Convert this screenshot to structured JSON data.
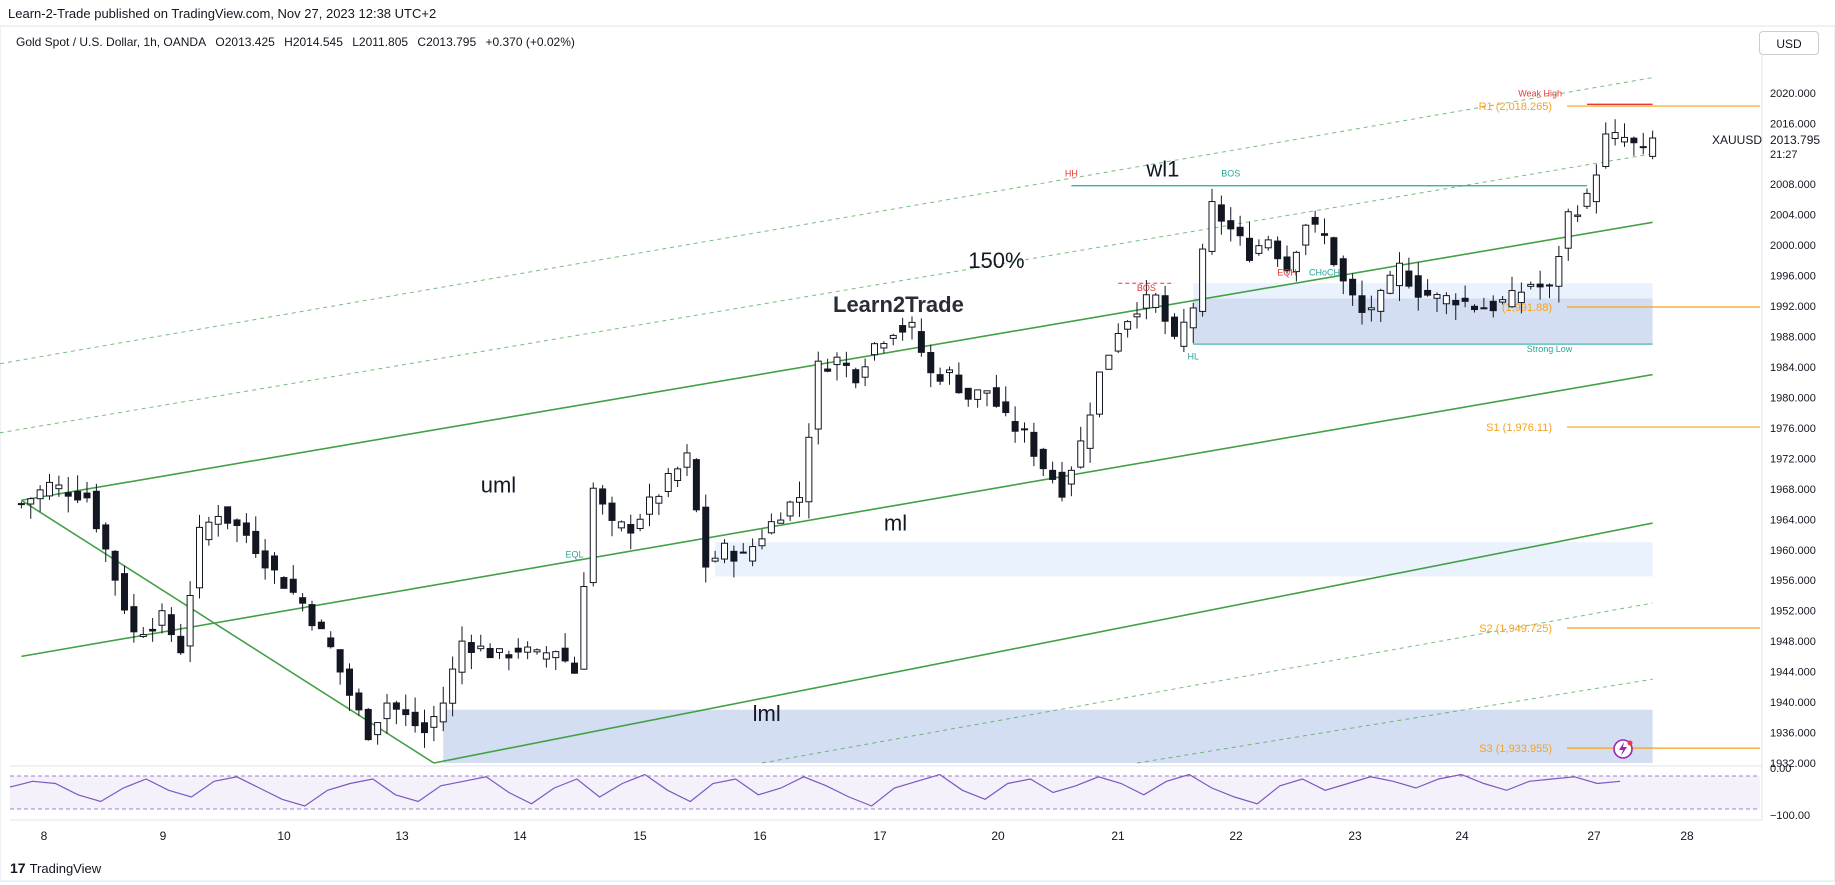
{
  "header": {
    "published": "Learn-2-Trade published on TradingView.com, Nov 27, 2023 12:38 UTC+2",
    "symbol": "Gold Spot / U.S. Dollar, 1h, OANDA",
    "open": "O2013.425",
    "high": "H2014.545",
    "low": "L2011.805",
    "close": "C2013.795",
    "change": "+0.370 (+0.02%)",
    "currency": "USD"
  },
  "footer": {
    "brand": "TradingView"
  },
  "watermark": "Learn2Trade",
  "colors": {
    "up": "#131722",
    "down": "#131722",
    "channel": "#43a047",
    "orange": "#f7a21b",
    "red": "#e53935",
    "teal": "#26a69a",
    "zone": "#c5d3ee",
    "zone_light": "#e3effd",
    "rsi": "#7e57c2"
  },
  "chart_data": {
    "type": "candlestick",
    "symbol": "XAUUSD",
    "timeframe": "1h",
    "x_ticks": [
      "8",
      "9",
      "10",
      "13",
      "14",
      "15",
      "16",
      "17",
      "20",
      "21",
      "22",
      "23",
      "24",
      "27",
      "28"
    ],
    "y_ticks": [
      1932,
      1936,
      1940,
      1944,
      1948,
      1952,
      1956,
      1960,
      1964,
      1968,
      1972,
      1976,
      1980,
      1984,
      1988,
      1992,
      1996,
      2000,
      2004,
      2008,
      2016,
      2020
    ],
    "y_tick_labels": [
      "1932.000",
      "1936.000",
      "1940.000",
      "1944.000",
      "1948.000",
      "1952.000",
      "1956.000",
      "1960.000",
      "1964.000",
      "1968.000",
      "1972.000",
      "1976.000",
      "1980.000",
      "1984.000",
      "1988.000",
      "1992.000",
      "1996.000",
      "2000.000",
      "2004.000",
      "2008.000",
      "2016.000",
      "2020.000"
    ],
    "ylim": [
      1932,
      2023
    ],
    "last_price": {
      "symbol": "XAUUSD",
      "value": 2013.795,
      "label": "2013.795",
      "countdown": "21:27"
    },
    "close_path": [
      [
        1,
        1966
      ],
      [
        4,
        1968.5
      ],
      [
        8,
        1967
      ],
      [
        10,
        1960
      ],
      [
        13,
        1949
      ],
      [
        16,
        1951
      ],
      [
        18,
        1947
      ],
      [
        20,
        1962
      ],
      [
        22,
        1965
      ],
      [
        25,
        1962
      ],
      [
        28,
        1957
      ],
      [
        31,
        1953
      ],
      [
        34,
        1947
      ],
      [
        36,
        1941
      ],
      [
        38,
        1936
      ],
      [
        40,
        1940
      ],
      [
        42,
        1938
      ],
      [
        44,
        1936
      ],
      [
        46,
        1940
      ],
      [
        48,
        1948
      ],
      [
        50,
        1947
      ],
      [
        52,
        1946
      ],
      [
        54,
        1947
      ],
      [
        56,
        1946
      ],
      [
        58,
        1947
      ],
      [
        60,
        1944
      ],
      [
        62,
        1968
      ],
      [
        64,
        1963
      ],
      [
        66,
        1963
      ],
      [
        68,
        1966
      ],
      [
        70,
        1969
      ],
      [
        72,
        1972
      ],
      [
        74,
        1958
      ],
      [
        76,
        1960
      ],
      [
        78,
        1959
      ],
      [
        80,
        1962
      ],
      [
        82,
        1965
      ],
      [
        84,
        1967
      ],
      [
        86,
        1984
      ],
      [
        88,
        1985
      ],
      [
        90,
        1983
      ],
      [
        92,
        1987
      ],
      [
        94,
        1989
      ],
      [
        96,
        1989
      ],
      [
        98,
        1983
      ],
      [
        100,
        1983
      ],
      [
        102,
        1980
      ],
      [
        104,
        1981
      ],
      [
        106,
        1977
      ],
      [
        108,
        1975
      ],
      [
        110,
        1971
      ],
      [
        112,
        1968
      ],
      [
        114,
        1974
      ],
      [
        116,
        1983
      ],
      [
        118,
        1989
      ],
      [
        120,
        1992
      ],
      [
        122,
        1993
      ],
      [
        124,
        1987
      ],
      [
        126,
        1992
      ],
      [
        128,
        2005
      ],
      [
        130,
        2002
      ],
      [
        132,
        1999
      ],
      [
        134,
        2001
      ],
      [
        136,
        1997
      ],
      [
        138,
        2003
      ],
      [
        140,
        2001
      ],
      [
        142,
        1995
      ],
      [
        144,
        1991
      ],
      [
        146,
        1993
      ],
      [
        148,
        1997
      ],
      [
        150,
        1994
      ],
      [
        152,
        1993
      ],
      [
        154,
        1993
      ],
      [
        156,
        1992
      ],
      [
        158,
        1992
      ],
      [
        160,
        1993
      ],
      [
        162,
        1995
      ],
      [
        164,
        1994
      ],
      [
        166,
        2004
      ],
      [
        168,
        2006
      ],
      [
        170,
        2014
      ],
      [
        172,
        2014
      ],
      [
        174,
        2012
      ],
      [
        175,
        2013.8
      ]
    ],
    "channel_lines": [
      {
        "name": "uml",
        "points": [
          [
            1,
            1966.5
          ],
          [
            175,
            2003
          ]
        ]
      },
      {
        "name": "ml",
        "points": [
          [
            1,
            1946
          ],
          [
            175,
            1983
          ]
        ]
      },
      {
        "name": "lml",
        "points": [
          [
            45,
            1932
          ],
          [
            175,
            1963.5
          ]
        ]
      },
      {
        "name": "",
        "points": [
          [
            1,
            1966.5
          ],
          [
            45,
            1932
          ]
        ]
      }
    ],
    "dashed_lines": [
      {
        "name": "150%",
        "points": [
          [
            -3,
            1975
          ],
          [
            175,
            2012
          ]
        ]
      },
      {
        "name": "wl1",
        "points": [
          [
            -8,
            1983
          ],
          [
            175,
            2022
          ]
        ]
      },
      {
        "name": "",
        "points": [
          [
            80,
            1932
          ],
          [
            175,
            1953
          ]
        ]
      },
      {
        "name": "",
        "points": [
          [
            120,
            1932
          ],
          [
            175,
            1943
          ]
        ]
      }
    ],
    "zones": [
      {
        "kind": "dark",
        "x": [
          126,
          175
        ],
        "y": [
          1987,
          1993
        ]
      },
      {
        "kind": "light",
        "x": [
          126,
          175
        ],
        "y": [
          1993,
          1995
        ]
      },
      {
        "kind": "light",
        "x": [
          75,
          175
        ],
        "y": [
          1956.5,
          1961
        ]
      },
      {
        "kind": "dark",
        "x": [
          46,
          175
        ],
        "y": [
          1932,
          1939
        ]
      }
    ],
    "pivot_levels": [
      {
        "label": "R1 (2,018.265)",
        "value": 2018.265
      },
      {
        "label": "(1,991.88)",
        "value": 1991.88
      },
      {
        "label": "S1 (1,976.11)",
        "value": 1976.11
      },
      {
        "label": "S2 (1,949.725)",
        "value": 1949.725
      },
      {
        "label": "S3 (1,933.955)",
        "value": 1933.955
      }
    ],
    "annotations": [
      {
        "text": "wl1",
        "x": 121,
        "y": 2009
      },
      {
        "text": "150%",
        "x": 102,
        "y": 1997
      },
      {
        "text": "uml",
        "x": 50,
        "y": 1967.5
      },
      {
        "text": "ml",
        "x": 93,
        "y": 1962.5
      },
      {
        "text": "lml",
        "x": 79,
        "y": 1937.5
      },
      {
        "text": "HH",
        "x": 113,
        "y": 2009
      },
      {
        "text": "BOS",
        "x": 130,
        "y": 2009
      },
      {
        "text": "BOS",
        "x": 121,
        "y": 1994
      },
      {
        "text": "EQH",
        "x": 136,
        "y": 1996
      },
      {
        "text": "CHoCH",
        "x": 140,
        "y": 1996
      },
      {
        "text": "HL",
        "x": 126,
        "y": 1985
      },
      {
        "text": "Strong Low",
        "x": 164,
        "y": 1986
      },
      {
        "text": "Weak High",
        "x": 163,
        "y": 2019.5
      },
      {
        "text": "EQL",
        "x": 60,
        "y": 1959
      }
    ],
    "rsi": {
      "labels": [
        "0.00",
        "−100.00"
      ],
      "values": [
        -38,
        -25,
        -30,
        -55,
        -70,
        -40,
        -20,
        -45,
        -60,
        -25,
        -15,
        -40,
        -65,
        -80,
        -45,
        -30,
        -20,
        -55,
        -70,
        -35,
        -25,
        -15,
        -50,
        -75,
        -40,
        -20,
        -60,
        -30,
        -10,
        -45,
        -70,
        -30,
        -20,
        -55,
        -40,
        -15,
        -35,
        -60,
        -80,
        -40,
        -25,
        -10,
        -45,
        -65,
        -30,
        -20,
        -50,
        -35,
        -15,
        -30,
        -55,
        -25,
        -10,
        -40,
        -60,
        -75,
        -35,
        -20,
        -45,
        -30,
        -15,
        -25,
        -40,
        -20,
        -10,
        -30,
        -45,
        -25,
        -20,
        -15,
        -30,
        -25
      ]
    }
  }
}
